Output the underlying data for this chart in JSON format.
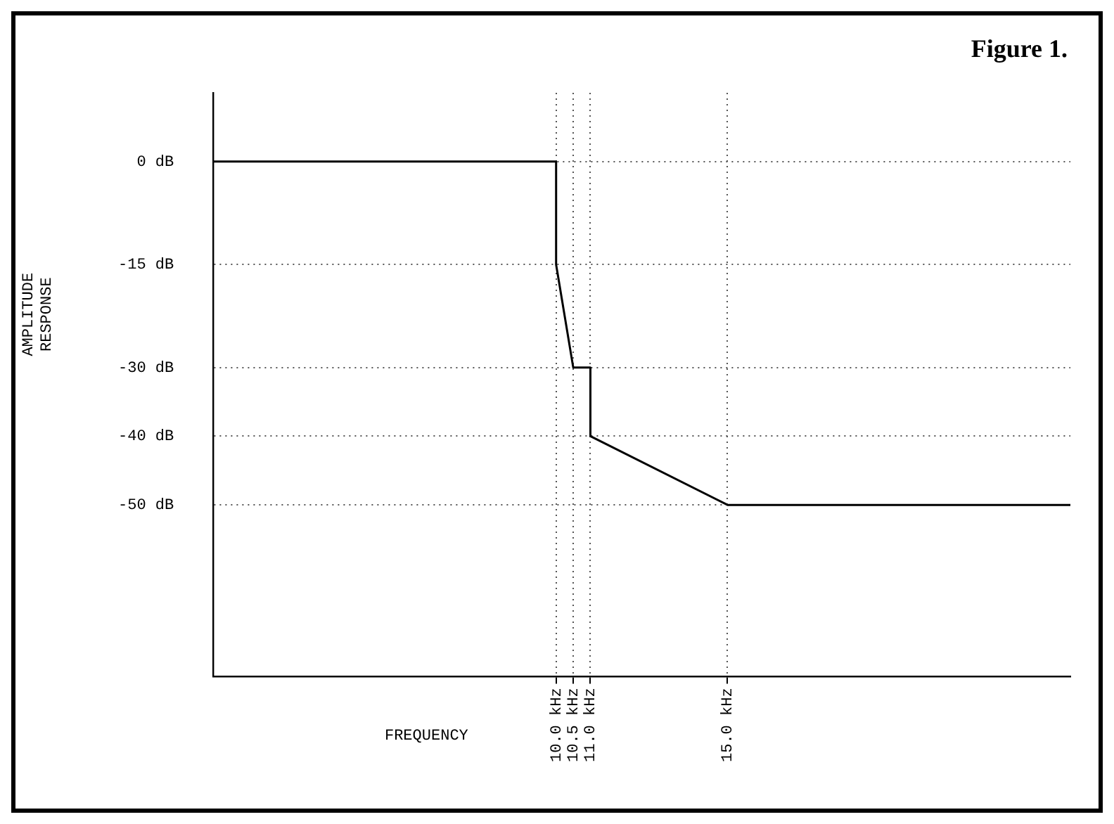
{
  "chart_data": {
    "type": "line",
    "title": "Figure 1.",
    "xlabel": "FREQUENCY",
    "ylabel": "AMPLITUDE RESPONSE",
    "x": [
      0,
      10,
      10,
      10.5,
      11,
      11,
      15,
      25
    ],
    "series": [
      {
        "color": "#000000",
        "values": [
          0,
          0,
          -15,
          -30,
          -30,
          -40,
          -50,
          -50
        ]
      }
    ],
    "xlim": [
      0,
      25
    ],
    "ylim": [
      -75,
      10
    ],
    "xticks": [
      {
        "value": 10,
        "label": "10.0 kHz"
      },
      {
        "value": 10.5,
        "label": "10.5 kHz"
      },
      {
        "value": 11,
        "label": "11.0 kHz"
      },
      {
        "value": 15,
        "label": "15.0 kHz"
      }
    ],
    "yticks": [
      {
        "value": 0,
        "label": "0 dB"
      },
      {
        "value": -15,
        "label": "-15 dB"
      },
      {
        "value": -30,
        "label": "-30 dB"
      },
      {
        "value": -40,
        "label": "-40 dB"
      },
      {
        "value": -50,
        "label": "-50 dB"
      }
    ],
    "grid": true,
    "legend": false,
    "marker": "none",
    "line_style": "solid"
  }
}
